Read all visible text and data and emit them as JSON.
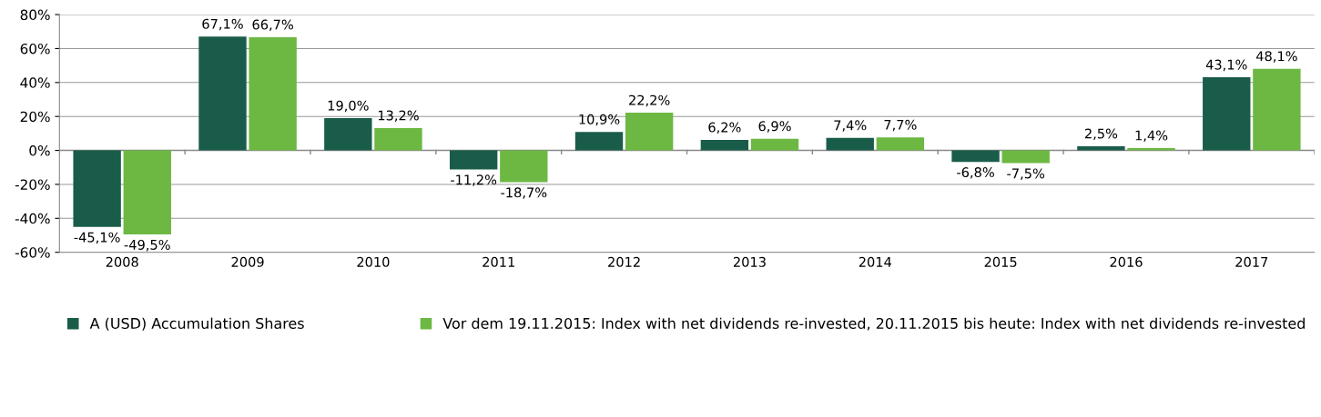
{
  "chart_data": {
    "type": "bar",
    "categories": [
      "2008",
      "2009",
      "2010",
      "2011",
      "2012",
      "2013",
      "2014",
      "2015",
      "2016",
      "2017"
    ],
    "series": [
      {
        "name": "A (USD) Accumulation Shares",
        "color": "#1a5c4a",
        "values": [
          -45.1,
          67.1,
          19.0,
          -11.2,
          10.9,
          6.2,
          7.4,
          -6.8,
          2.5,
          43.1
        ],
        "value_labels": [
          "-45,1%",
          "67,1%",
          "19,0%",
          "-11,2%",
          "10,9%",
          "6,2%",
          "7,4%",
          "-6,8%",
          "2,5%",
          "43,1%"
        ]
      },
      {
        "name": "Vor dem 19.11.2015: Index with net dividends re-invested, 20.11.2015 bis heute: Index with net dividends re-invested",
        "color": "#6cb843",
        "values": [
          -49.5,
          66.7,
          13.2,
          -18.7,
          22.2,
          6.9,
          7.7,
          -7.5,
          1.4,
          48.1
        ],
        "value_labels": [
          "-49,5%",
          "66,7%",
          "13,2%",
          "-18,7%",
          "22,2%",
          "6,9%",
          "7,7%",
          "-7,5%",
          "1,4%",
          "48,1%"
        ]
      }
    ],
    "ylim": [
      -60,
      80
    ],
    "yticks": [
      {
        "value": -60,
        "label": "-60%"
      },
      {
        "value": -40,
        "label": "-40%"
      },
      {
        "value": -20,
        "label": "-20%"
      },
      {
        "value": 0,
        "label": "0%"
      },
      {
        "value": 20,
        "label": "20%"
      },
      {
        "value": 40,
        "label": "40%"
      },
      {
        "value": 60,
        "label": "60%"
      },
      {
        "value": 80,
        "label": "80%"
      }
    ],
    "grid": "y",
    "legend": "bottom"
  }
}
